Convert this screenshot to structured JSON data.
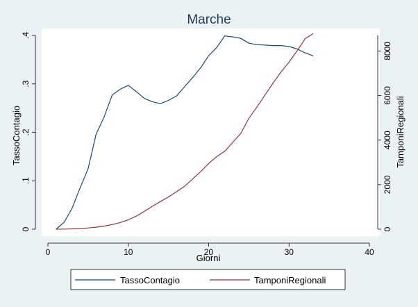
{
  "chart_data": {
    "type": "line",
    "title": "Marche",
    "xlabel": "Giorni",
    "ylabel_left": "TassoContagio",
    "ylabel_right": "TamponiRegionali",
    "xlim": [
      0,
      40
    ],
    "ylim_left": [
      0,
      0.4
    ],
    "ylim_right": [
      0,
      8700
    ],
    "x_ticks": [
      0,
      10,
      20,
      30,
      40
    ],
    "x_tick_labels": [
      "0",
      "10",
      "20",
      "30",
      "40"
    ],
    "y_left_ticks": [
      0,
      0.1,
      0.2,
      0.3,
      0.4
    ],
    "y_left_tick_labels": [
      "0",
      ".1",
      ".2",
      ".3",
      ".4"
    ],
    "y_right_ticks": [
      0,
      2000,
      4000,
      6000,
      8000
    ],
    "y_right_tick_labels": [
      "0",
      "2000",
      "4000",
      "6000",
      "8000"
    ],
    "grid": false,
    "legend_position": "bottom",
    "series": [
      {
        "name": "TassoContagio",
        "axis": "left",
        "color": "#1A476F",
        "x": [
          1,
          2,
          3,
          4,
          5,
          6,
          7,
          8,
          9,
          10,
          11,
          12,
          13,
          14,
          15,
          16,
          17,
          18,
          19,
          20,
          21,
          22,
          23,
          24,
          25,
          26,
          27,
          28,
          29,
          30,
          31,
          32,
          33
        ],
        "values": [
          0.0,
          0.014,
          0.043,
          0.085,
          0.125,
          0.196,
          0.232,
          0.277,
          0.289,
          0.297,
          0.284,
          0.27,
          0.263,
          0.259,
          0.266,
          0.275,
          0.294,
          0.313,
          0.333,
          0.358,
          0.375,
          0.399,
          0.397,
          0.394,
          0.384,
          0.381,
          0.38,
          0.379,
          0.379,
          0.377,
          0.372,
          0.364,
          0.358
        ]
      },
      {
        "name": "TamponiRegionali",
        "axis": "right",
        "color": "#90353B",
        "x": [
          1,
          2,
          3,
          4,
          5,
          6,
          7,
          8,
          9,
          10,
          11,
          12,
          13,
          14,
          15,
          16,
          17,
          18,
          19,
          20,
          21,
          22,
          23,
          24,
          25,
          26,
          27,
          28,
          29,
          30,
          31,
          32,
          33
        ],
        "values": [
          0,
          5,
          15,
          30,
          55,
          90,
          140,
          210,
          300,
          420,
          590,
          800,
          1030,
          1240,
          1450,
          1680,
          1930,
          2250,
          2580,
          2950,
          3260,
          3500,
          3900,
          4300,
          4980,
          5480,
          6020,
          6550,
          7060,
          7500,
          8000,
          8550,
          8780
        ]
      }
    ]
  }
}
